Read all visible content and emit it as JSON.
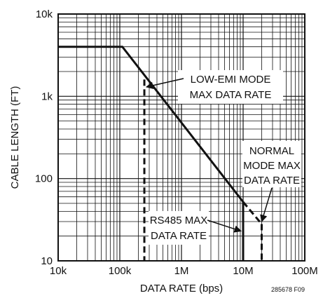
{
  "chart_data": {
    "type": "line",
    "x_scale": "log",
    "y_scale": "log",
    "xlim": [
      10000,
      100000000
    ],
    "ylim": [
      10,
      10000
    ],
    "grid": true,
    "xlabel": "DATA RATE (bps)",
    "ylabel": "CABLE LENGTH (FT)",
    "x_ticks": [
      {
        "value": 10000,
        "label": "10k"
      },
      {
        "value": 100000,
        "label": "100k"
      },
      {
        "value": 1000000,
        "label": "1M"
      },
      {
        "value": 10000000,
        "label": "10M"
      },
      {
        "value": 100000000,
        "label": "100M"
      }
    ],
    "y_ticks": [
      {
        "value": 10,
        "label": "10"
      },
      {
        "value": 100,
        "label": "100"
      },
      {
        "value": 1000,
        "label": "1k"
      },
      {
        "value": 10000,
        "label": "10k"
      }
    ],
    "series": [
      {
        "style": "solid",
        "points": [
          [
            10000,
            4000
          ],
          [
            110000,
            4000
          ],
          [
            10000000,
            52
          ]
        ]
      },
      {
        "style": "dashed",
        "points": [
          [
            10000000,
            52
          ],
          [
            20000000,
            28
          ]
        ]
      },
      {
        "style": "solid",
        "points": [
          [
            10000000,
            52
          ],
          [
            10000000,
            10
          ]
        ]
      },
      {
        "style": "dashed",
        "points": [
          [
            250000,
            1600
          ],
          [
            250000,
            10
          ]
        ]
      },
      {
        "style": "dashed",
        "points": [
          [
            20000000,
            28
          ],
          [
            20000000,
            10
          ]
        ]
      }
    ],
    "annotations": [
      {
        "lines": [
          "LOW-EMI MODE",
          "MAX DATA RATE"
        ],
        "arrow_to": [
          250000,
          1300
        ]
      },
      {
        "lines": [
          "NORMAL",
          "MODE MAX",
          "DATA RATE"
        ],
        "arrow_to": [
          20000000,
          30
        ]
      },
      {
        "lines": [
          "RS485 MAX",
          "DATA RATE"
        ],
        "arrow_to": [
          10000000,
          23
        ]
      }
    ],
    "figure_id": "285678 F09"
  }
}
